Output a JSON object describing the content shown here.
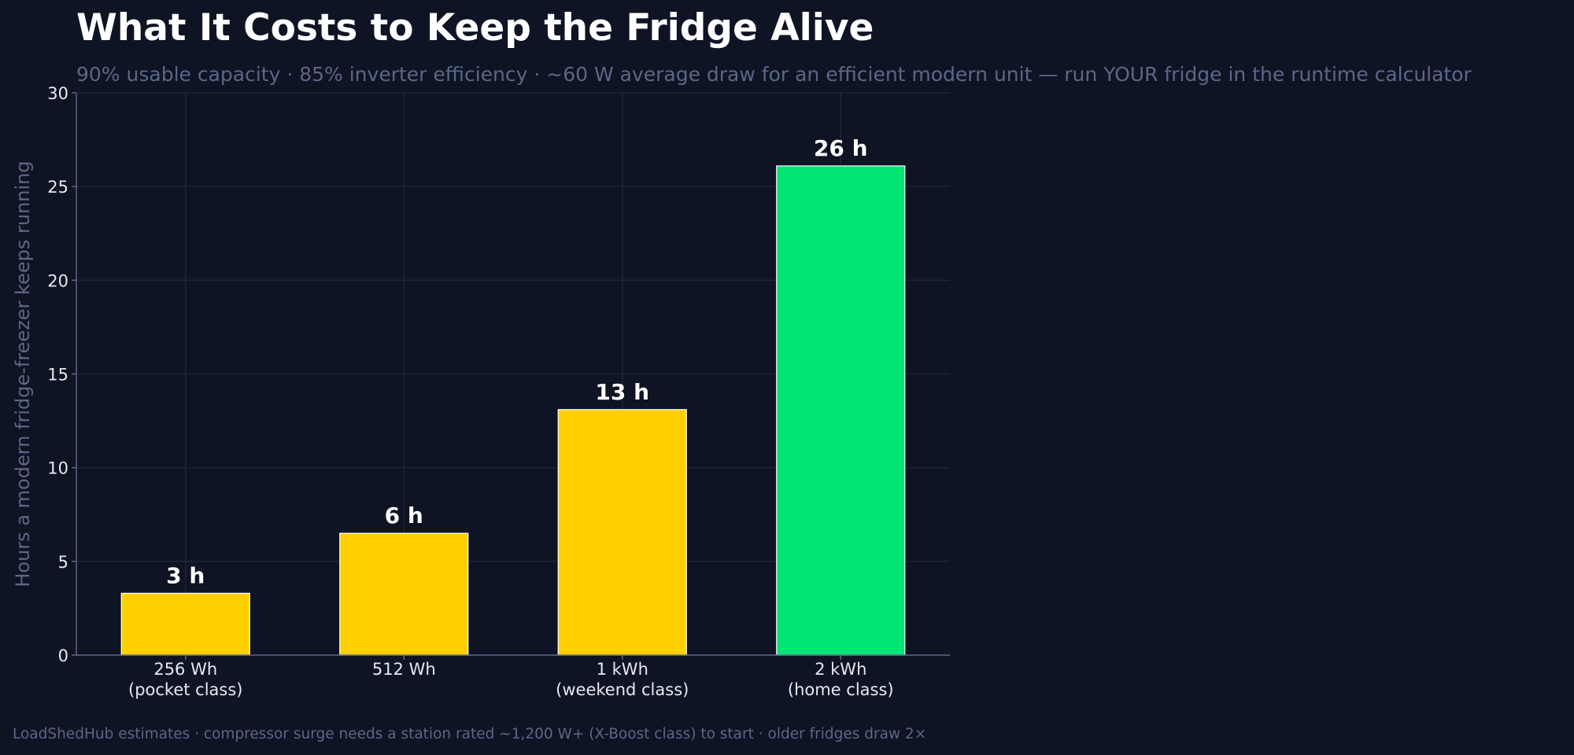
{
  "header": {
    "title": "What It Costs to Keep the Fridge Alive",
    "subtitle": "90% usable capacity · 85% inverter efficiency · ~60 W average draw for an efficient modern unit — run YOUR fridge in the runtime calculator"
  },
  "footer": {
    "note": "LoadShedHub estimates · compressor surge needs a station rated ~1,200 W+ (X-Boost class) to start · older fridges draw 2×"
  },
  "chart_data": {
    "type": "bar",
    "categories": [
      [
        "256 Wh",
        "(pocket class)"
      ],
      [
        "512 Wh"
      ],
      [
        "1 kWh",
        "(weekend class)"
      ],
      [
        "2 kWh",
        "(home class)"
      ]
    ],
    "values": [
      3.3,
      6.5,
      13.1,
      26.1
    ],
    "data_labels": [
      "3 h",
      "6 h",
      "13 h",
      "26 h"
    ],
    "bar_colors": [
      "#ffd000",
      "#ffd000",
      "#ffd000",
      "#00e676"
    ],
    "title": "What It Costs to Keep the Fridge Alive",
    "xlabel": "",
    "ylabel": "Hours a modern fridge-freezer keeps running",
    "ylim": [
      0,
      30
    ],
    "yticks": [
      0,
      5,
      10,
      15,
      20,
      25,
      30
    ],
    "grid": true,
    "legend": "none"
  },
  "colors": {
    "background": "#0e1424",
    "grid": "#1d2538",
    "axis": "#5c6787",
    "tick_text": "#e6e9f0",
    "muted_text": "#5c6787",
    "label_text": "#ffffff"
  }
}
